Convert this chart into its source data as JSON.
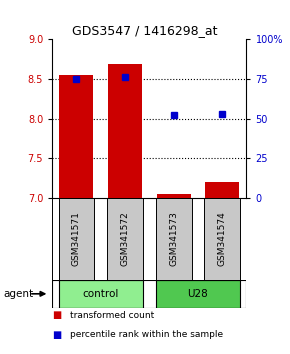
{
  "title": "GDS3547 / 1416298_at",
  "samples": [
    "GSM341571",
    "GSM341572",
    "GSM341573",
    "GSM341574"
  ],
  "bar_values": [
    8.55,
    8.68,
    7.05,
    7.2
  ],
  "percentile_values": [
    75,
    76,
    52,
    53
  ],
  "ylim_left": [
    7,
    9
  ],
  "ylim_right": [
    0,
    100
  ],
  "yticks_left": [
    7,
    7.5,
    8,
    8.5,
    9
  ],
  "yticks_right": [
    0,
    25,
    50,
    75,
    100
  ],
  "ytick_labels_right": [
    "0",
    "25",
    "50",
    "75",
    "100%"
  ],
  "bar_color": "#cc0000",
  "point_color": "#0000cc",
  "groups": [
    {
      "label": "control",
      "indices": [
        0,
        1
      ],
      "color": "#90ee90"
    },
    {
      "label": "U28",
      "indices": [
        2,
        3
      ],
      "color": "#50c850"
    }
  ],
  "agent_label": "agent",
  "legend_items": [
    {
      "color": "#cc0000",
      "label": "transformed count"
    },
    {
      "color": "#0000cc",
      "label": "percentile rank within the sample"
    }
  ],
  "sample_box_color": "#c8c8c8",
  "bar_width": 0.7,
  "x_positions": [
    1,
    2,
    3,
    4
  ],
  "gridlines": [
    7.5,
    8.0,
    8.5
  ]
}
